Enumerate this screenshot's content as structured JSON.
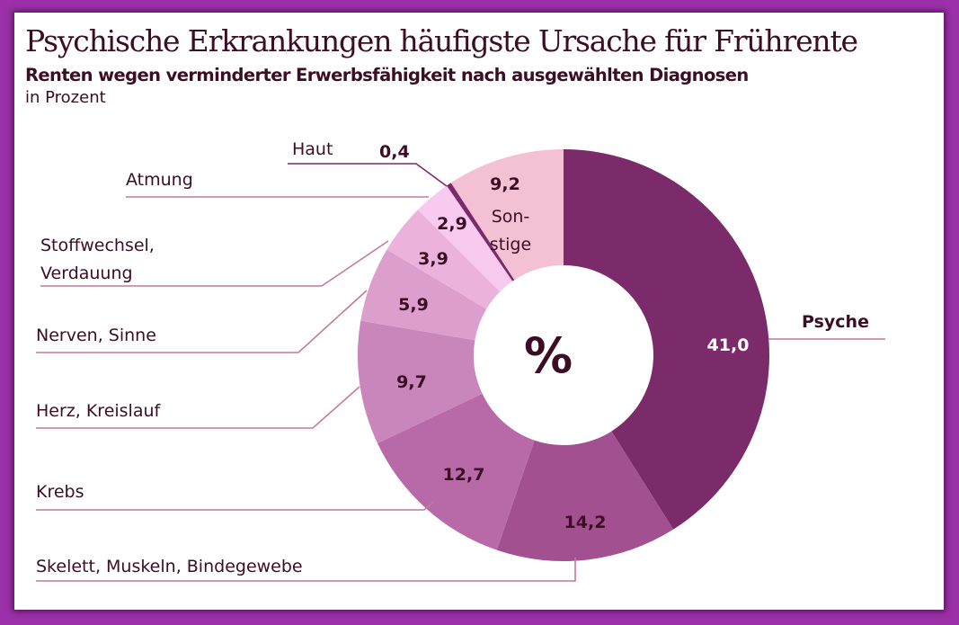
{
  "chart_data": {
    "type": "pie",
    "variant": "donut",
    "title": "Psychische Erkrankungen häufigste Ursache für Frührente",
    "subtitle": "Renten wegen verminderter Erwerbsfähigkeit nach ausgewählten Diagnosen",
    "unit": "in Prozent",
    "center_label": "%",
    "slices": [
      {
        "label": "Psyche",
        "value": 41.0,
        "value_label": "41,0",
        "color": "#7b2a6a"
      },
      {
        "label": "Skelett, Muskeln, Bindegewebe",
        "value": 14.2,
        "value_label": "14,2",
        "color": "#a2508f"
      },
      {
        "label": "Krebs",
        "value": 12.7,
        "value_label": "12,7",
        "color": "#b86aa8"
      },
      {
        "label": "Herz, Kreislauf",
        "value": 9.7,
        "value_label": "9,7",
        "color": "#c986bb"
      },
      {
        "label": "Nerven, Sinne",
        "value": 5.9,
        "value_label": "5,9",
        "color": "#dc9fcd"
      },
      {
        "label": "Stoffwechsel, Verdauung",
        "value": 3.9,
        "value_label": "3,9",
        "color": "#ebb3dc"
      },
      {
        "label": "Atmung",
        "value": 2.9,
        "value_label": "2,9",
        "color": "#f9caf0"
      },
      {
        "label": "Haut",
        "value": 0.4,
        "value_label": "0,4",
        "color": "#7b2a6a"
      },
      {
        "label": "Son- stige",
        "label_lines": [
          "Son-",
          "stige"
        ],
        "value": 9.2,
        "value_label": "9,2",
        "color": "#f3c0d4"
      }
    ]
  },
  "labels": {
    "psyche": "Psyche",
    "skelett": "Skelett, Muskeln, Bindegewebe",
    "krebs": "Krebs",
    "herz": "Herz, Kreislauf",
    "nerven": "Nerven, Sinne",
    "stoff1": "Stoffwechsel,",
    "stoff2": "Verdauung",
    "atmung": "Atmung",
    "haut": "Haut"
  }
}
